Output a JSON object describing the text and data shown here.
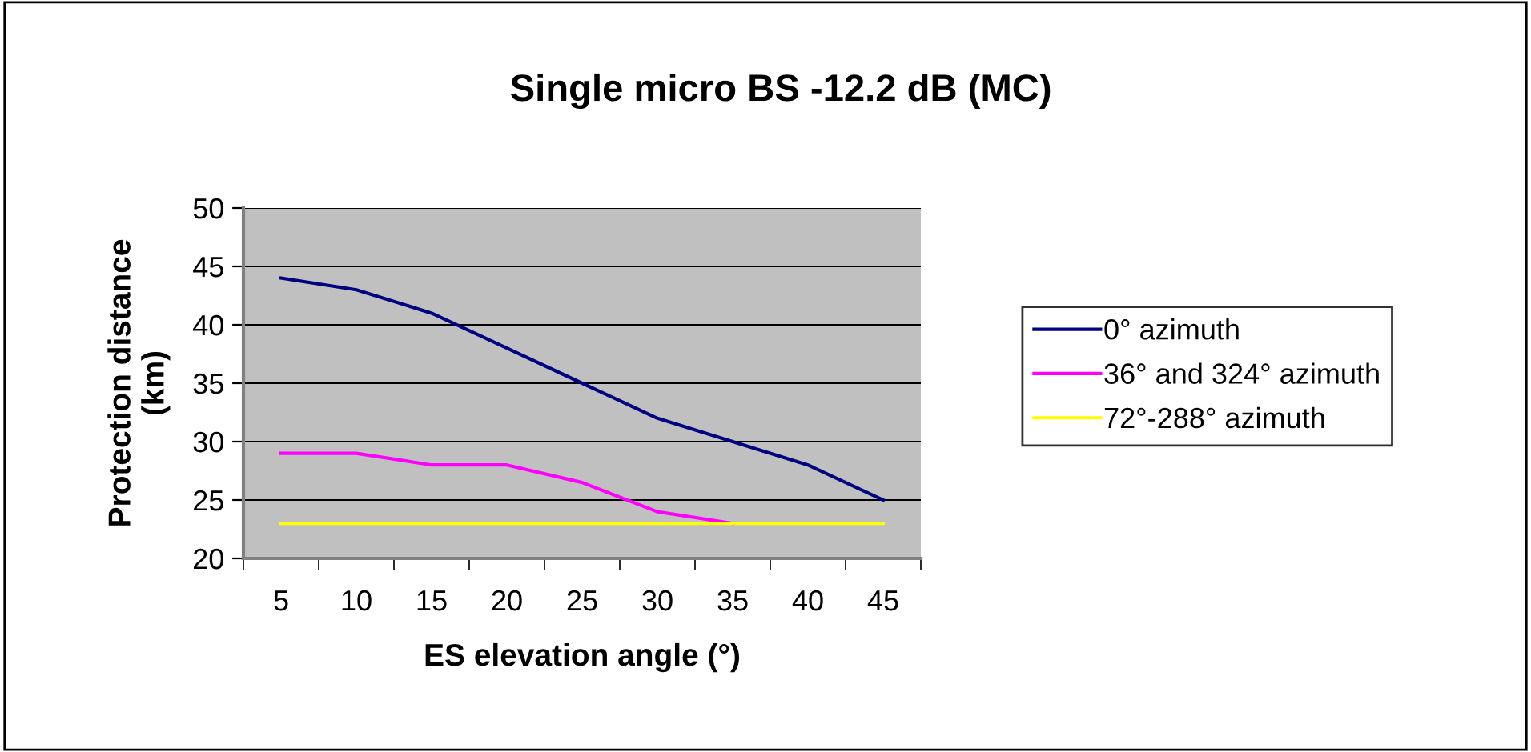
{
  "chart_data": {
    "type": "line",
    "title": "Single micro BS -12.2 dB (MC)",
    "xlabel": "ES elevation angle (°)",
    "ylabel": "Protection distance\n(km)",
    "categories": [
      "5",
      "10",
      "15",
      "20",
      "25",
      "30",
      "35",
      "40",
      "45"
    ],
    "series": [
      {
        "name": "0° azimuth",
        "color": "#000080",
        "values": [
          44,
          43,
          41,
          38,
          35,
          32,
          30,
          28,
          25
        ]
      },
      {
        "name": "36° and 324° azimuth",
        "color": "#ff00ff",
        "values": [
          29,
          29,
          28,
          28,
          26.5,
          24,
          23,
          null,
          null
        ]
      },
      {
        "name": "72°-288° azimuth",
        "color": "#ffff00",
        "values": [
          23,
          23,
          23,
          23,
          23,
          23,
          23,
          23,
          23
        ]
      }
    ],
    "ylim": [
      20,
      50
    ],
    "yticks": [
      20,
      25,
      30,
      35,
      40,
      45,
      50
    ],
    "grid": "y",
    "legend": "right",
    "marker": "none",
    "line_style": "solid"
  }
}
